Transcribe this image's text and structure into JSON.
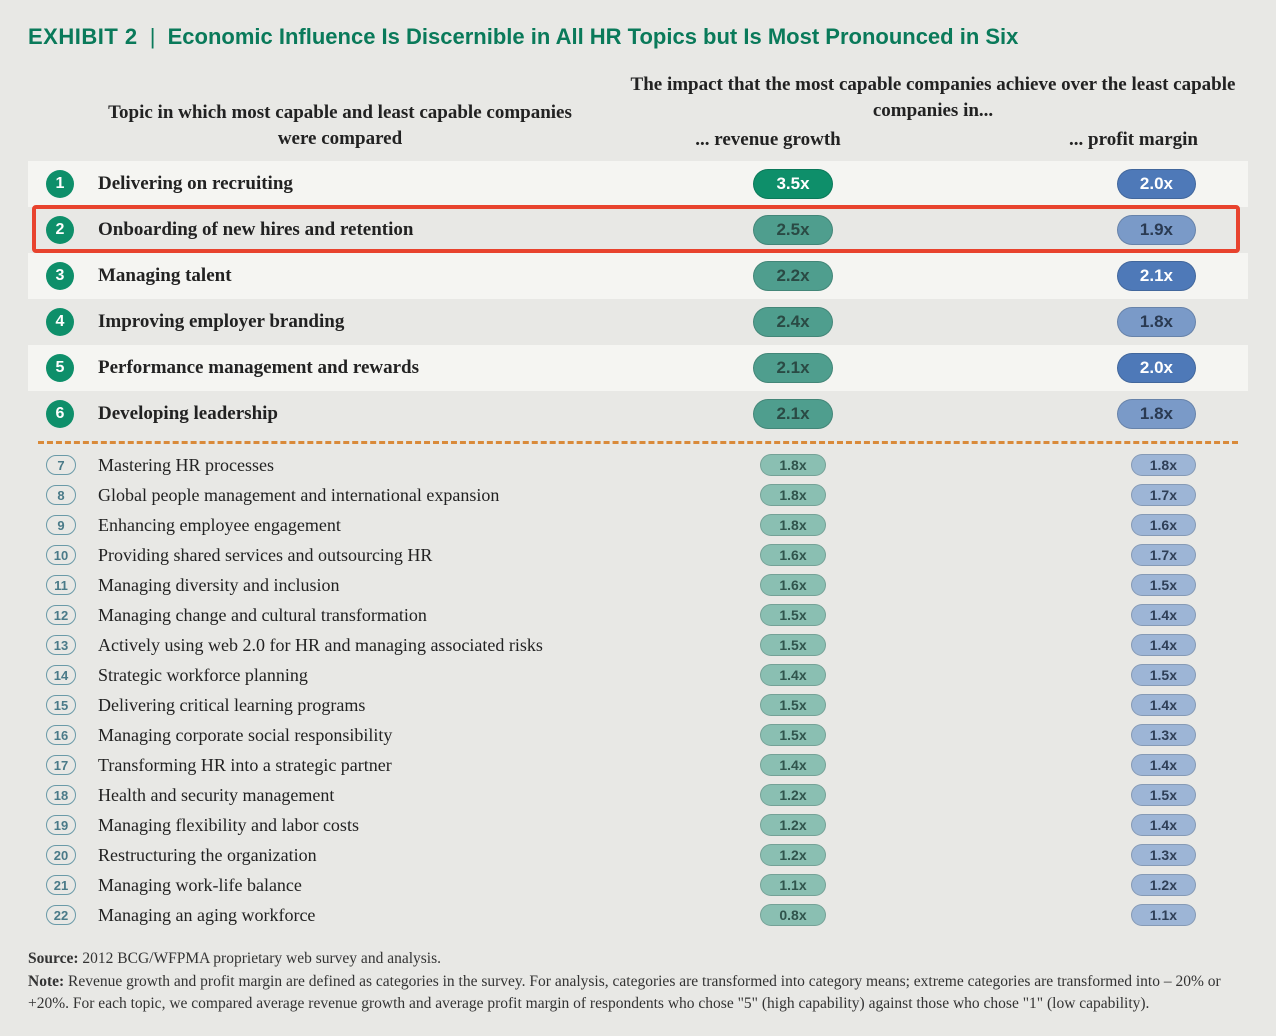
{
  "title": {
    "exhibit": "EXHIBIT 2",
    "text": "Economic Influence Is Discernible in All HR Topics but Is Most Pronounced in Six"
  },
  "headers": {
    "left": "Topic in which most capable and least capable companies were compared",
    "right_top": "The impact that the most capable companies achieve over the least capable companies in...",
    "sub_revenue": "... revenue growth",
    "sub_profit": "... profit margin"
  },
  "colors": {
    "rev_strong": {
      "bg": "#0e8f6a",
      "fg": "#ffffff"
    },
    "rev_mid": {
      "bg": "#4f9e8e",
      "fg": "#2a4a44"
    },
    "rev_soft": {
      "bg": "#8abfb2",
      "fg": "#30544c"
    },
    "prof_strong": {
      "bg": "#4e79b8",
      "fg": "#ffffff"
    },
    "prof_mid": {
      "bg": "#7a9ac8",
      "fg": "#2a3a52"
    },
    "prof_soft": {
      "bg": "#9db5d6",
      "fg": "#2f3f57"
    }
  },
  "top_rows": [
    {
      "n": "1",
      "topic": "Delivering on recruiting",
      "rev": "3.5x",
      "rev_c": "rev_strong",
      "prof": "2.0x",
      "prof_c": "prof_strong",
      "hl": false
    },
    {
      "n": "2",
      "topic": "Onboarding of new hires and retention",
      "rev": "2.5x",
      "rev_c": "rev_mid",
      "prof": "1.9x",
      "prof_c": "prof_mid",
      "hl": true
    },
    {
      "n": "3",
      "topic": "Managing talent",
      "rev": "2.2x",
      "rev_c": "rev_mid",
      "prof": "2.1x",
      "prof_c": "prof_strong",
      "hl": false
    },
    {
      "n": "4",
      "topic": "Improving employer branding",
      "rev": "2.4x",
      "rev_c": "rev_mid",
      "prof": "1.8x",
      "prof_c": "prof_mid",
      "hl": false
    },
    {
      "n": "5",
      "topic": "Performance management and rewards",
      "rev": "2.1x",
      "rev_c": "rev_mid",
      "prof": "2.0x",
      "prof_c": "prof_strong",
      "hl": false
    },
    {
      "n": "6",
      "topic": "Developing leadership",
      "rev": "2.1x",
      "rev_c": "rev_mid",
      "prof": "1.8x",
      "prof_c": "prof_mid",
      "hl": false
    }
  ],
  "bottom_rows": [
    {
      "n": "7",
      "topic": "Mastering HR processes",
      "rev": "1.8x",
      "prof": "1.8x"
    },
    {
      "n": "8",
      "topic": "Global people management and international expansion",
      "rev": "1.8x",
      "prof": "1.7x"
    },
    {
      "n": "9",
      "topic": "Enhancing employee engagement",
      "rev": "1.8x",
      "prof": "1.6x"
    },
    {
      "n": "10",
      "topic": "Providing shared services and outsourcing HR",
      "rev": "1.6x",
      "prof": "1.7x"
    },
    {
      "n": "11",
      "topic": "Managing diversity and inclusion",
      "rev": "1.6x",
      "prof": "1.5x"
    },
    {
      "n": "12",
      "topic": "Managing change and cultural transformation",
      "rev": "1.5x",
      "prof": "1.4x"
    },
    {
      "n": "13",
      "topic": "Actively using web 2.0 for HR and managing associated risks",
      "rev": "1.5x",
      "prof": "1.4x"
    },
    {
      "n": "14",
      "topic": "Strategic workforce planning",
      "rev": "1.4x",
      "prof": "1.5x"
    },
    {
      "n": "15",
      "topic": "Delivering critical learning programs",
      "rev": "1.5x",
      "prof": "1.4x"
    },
    {
      "n": "16",
      "topic": "Managing corporate social responsibility",
      "rev": "1.5x",
      "prof": "1.3x"
    },
    {
      "n": "17",
      "topic": "Transforming HR into a strategic partner",
      "rev": "1.4x",
      "prof": "1.4x"
    },
    {
      "n": "18",
      "topic": "Health and security management",
      "rev": "1.2x",
      "prof": "1.5x"
    },
    {
      "n": "19",
      "topic": "Managing flexibility and labor costs",
      "rev": "1.2x",
      "prof": "1.4x"
    },
    {
      "n": "20",
      "topic": "Restructuring the organization",
      "rev": "1.2x",
      "prof": "1.3x"
    },
    {
      "n": "21",
      "topic": "Managing work-life balance",
      "rev": "1.1x",
      "prof": "1.2x"
    },
    {
      "n": "22",
      "topic": "Managing an aging workforce",
      "rev": "0.8x",
      "prof": "1.1x"
    }
  ],
  "footnote": {
    "source_label": "Source:",
    "source_text": " 2012 BCG/WFPMA proprietary web survey and analysis.",
    "note_label": "Note:",
    "note_text": " Revenue growth and profit margin are defined as categories in the survey. For analysis, categories are transformed into category means; extreme categories are transformed into – 20% or +20%. For each topic, we compared average revenue growth and average profit margin of respondents who chose \"5\" (high capability) against those who chose \"1\" (low capability)."
  }
}
